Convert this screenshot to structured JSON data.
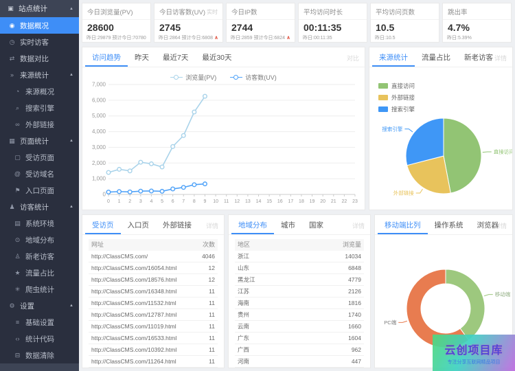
{
  "sidebar": {
    "items": [
      {
        "id": "site-stats",
        "label": "站点统计",
        "icon": "monitor",
        "level": 0,
        "arrow": true
      },
      {
        "id": "data-overview",
        "label": "数据概况",
        "icon": "dashboard",
        "level": 1,
        "active": true
      },
      {
        "id": "realtime-visitors",
        "label": "实时访客",
        "icon": "clock",
        "level": 1
      },
      {
        "id": "data-compare",
        "label": "数据对比",
        "icon": "compare",
        "level": 1
      },
      {
        "id": "source-stats",
        "label": "来源统计",
        "icon": "chevrons",
        "level": 1,
        "arrow": true
      },
      {
        "id": "source-overview",
        "label": "来源概况",
        "icon": "pie",
        "level": 2
      },
      {
        "id": "search-engine",
        "label": "搜索引擎",
        "icon": "search",
        "level": 2
      },
      {
        "id": "external-links",
        "label": "外部链接",
        "icon": "link",
        "level": 2
      },
      {
        "id": "page-stats",
        "label": "页面统计",
        "icon": "pages",
        "level": 1,
        "arrow": true
      },
      {
        "id": "visited-pages",
        "label": "受访页面",
        "icon": "file",
        "level": 2
      },
      {
        "id": "visited-domains",
        "label": "受访域名",
        "icon": "at",
        "level": 2
      },
      {
        "id": "entry-pages",
        "label": "入口页面",
        "icon": "flag",
        "level": 2
      },
      {
        "id": "visitor-stats",
        "label": "访客统计",
        "icon": "user",
        "level": 1,
        "arrow": true
      },
      {
        "id": "system-env",
        "label": "系统环境",
        "icon": "desktop",
        "level": 2
      },
      {
        "id": "region-distribution",
        "label": "地域分布",
        "icon": "location",
        "level": 2
      },
      {
        "id": "new-old-visitors",
        "label": "新老访客",
        "icon": "users",
        "level": 2
      },
      {
        "id": "traffic-ratio",
        "label": "流量占比",
        "icon": "star",
        "level": 2
      },
      {
        "id": "crawler-stats",
        "label": "爬虫统计",
        "icon": "bug",
        "level": 2
      },
      {
        "id": "settings",
        "label": "设置",
        "icon": "gear",
        "level": 1,
        "arrow": true
      },
      {
        "id": "basic-settings",
        "label": "基础设置",
        "icon": "sliders",
        "level": 2
      },
      {
        "id": "stats-code",
        "label": "统计代码",
        "icon": "code",
        "level": 2
      },
      {
        "id": "data-clear",
        "label": "数据清除",
        "icon": "trash",
        "level": 2
      }
    ]
  },
  "stat_cards": [
    {
      "title": "今日浏览量(PV)",
      "value": "28600",
      "sub": "昨日:29879 预计今日:70780",
      "trend": ""
    },
    {
      "title": "今日访客数(UV)",
      "badge": "实时",
      "value": "2745",
      "sub": "昨日:2864 预计今日:6808",
      "trend": "up"
    },
    {
      "title": "今日IP数",
      "value": "2744",
      "sub": "昨日:2859 预计今日:6824",
      "trend": "up"
    },
    {
      "title": "平均访问时长",
      "value": "00:11:35",
      "sub": "昨日:00:11:35",
      "trend": ""
    },
    {
      "title": "平均访问页数",
      "value": "10.5",
      "sub": "昨日:10.5",
      "trend": ""
    },
    {
      "title": "跳出率",
      "value": "4.7%",
      "sub": "昨日:5.39%",
      "trend": ""
    }
  ],
  "trend_panel": {
    "tabs": [
      "访问趋势",
      "昨天",
      "最近7天",
      "最近30天"
    ],
    "active_tab": 0,
    "link": "对比"
  },
  "source_panel": {
    "tabs": [
      "来源统计",
      "流量占比",
      "新老访客"
    ],
    "active_tab": 0,
    "link": "详情"
  },
  "pages_panel": {
    "tabs": [
      "受访页",
      "入口页",
      "外部链接"
    ],
    "active_tab": 0,
    "link": "详情",
    "table": {
      "columns": [
        "网址",
        "次数"
      ],
      "rows": [
        [
          "http://ClassCMS.com/",
          "4046"
        ],
        [
          "http://ClassCMS.com/16054.html",
          "12"
        ],
        [
          "http://ClassCMS.com/18576.html",
          "12"
        ],
        [
          "http://ClassCMS.com/16348.html",
          "11"
        ],
        [
          "http://ClassCMS.com/11532.html",
          "11"
        ],
        [
          "http://ClassCMS.com/12787.html",
          "11"
        ],
        [
          "http://ClassCMS.com/11019.html",
          "11"
        ],
        [
          "http://ClassCMS.com/16533.html",
          "11"
        ],
        [
          "http://ClassCMS.com/10392.html",
          "11"
        ],
        [
          "http://ClassCMS.com/11264.html",
          "11"
        ]
      ]
    }
  },
  "region_panel": {
    "tabs": [
      "地域分布",
      "城市",
      "国家"
    ],
    "active_tab": 0,
    "link": "详情",
    "table": {
      "columns": [
        "地区",
        "浏览量"
      ],
      "rows": [
        [
          "浙江",
          "14034"
        ],
        [
          "山东",
          "6848"
        ],
        [
          "黑龙江",
          "4779"
        ],
        [
          "江苏",
          "2126"
        ],
        [
          "海南",
          "1816"
        ],
        [
          "贵州",
          "1740"
        ],
        [
          "云南",
          "1660"
        ],
        [
          "广东",
          "1604"
        ],
        [
          "广西",
          "962"
        ],
        [
          "河南",
          "447"
        ]
      ]
    }
  },
  "mobile_panel": {
    "tabs": [
      "移动端比列",
      "操作系统",
      "浏览器"
    ],
    "active_tab": 0,
    "link": "详情"
  },
  "watermark": {
    "title": "云创项目库",
    "subtitle": "专注分享互联网精品项目"
  },
  "colors": {
    "accent": "#3e8ef7",
    "up": "#e25b4a",
    "pv_line": "#a9d3ea",
    "uv_line": "#4fa2f8",
    "pie_green": "#92c474",
    "pie_yellow": "#e8c35c",
    "pie_blue": "#3f97f6",
    "donut_green": "#9dc87e",
    "donut_orange": "#e87c50"
  },
  "chart_data": [
    {
      "id": "trend",
      "type": "line",
      "title": "访问趋势",
      "x": [
        "0",
        "1",
        "2",
        "3",
        "4",
        "5",
        "6",
        "7",
        "8",
        "9",
        "10",
        "11",
        "12",
        "13",
        "14",
        "15",
        "16",
        "17",
        "18",
        "19",
        "20",
        "21",
        "22",
        "23"
      ],
      "series": [
        {
          "name": "浏览量(PV)",
          "color": "#a9d3ea",
          "values": [
            1400,
            1600,
            1500,
            2050,
            1950,
            1750,
            3050,
            3750,
            5250,
            6250
          ]
        },
        {
          "name": "访客数(UV)",
          "color": "#4fa2f8",
          "values": [
            150,
            180,
            160,
            210,
            220,
            200,
            350,
            450,
            620,
            670
          ]
        }
      ],
      "xlabel": "",
      "ylabel": "",
      "ylim": [
        0,
        7000
      ],
      "ytick": 1000,
      "grid": true,
      "legend_position": "top"
    },
    {
      "id": "source",
      "type": "pie",
      "title": "来源统计",
      "legend_position": "top-left",
      "slices": [
        {
          "name": "直接访问",
          "value": 47,
          "color": "#92c474"
        },
        {
          "name": "外部链接",
          "value": 24,
          "color": "#e8c35c"
        },
        {
          "name": "搜索引擎",
          "value": 29,
          "color": "#3f97f6"
        }
      ]
    },
    {
      "id": "mobile",
      "type": "donut",
      "title": "移动端比列",
      "slices": [
        {
          "name": "移动端",
          "value": 40,
          "color": "#9dc87e",
          "label_color": "#94b086"
        },
        {
          "name": "PC端",
          "value": 60,
          "color": "#e87c50",
          "label_color": "#7d7d7d"
        }
      ]
    }
  ]
}
